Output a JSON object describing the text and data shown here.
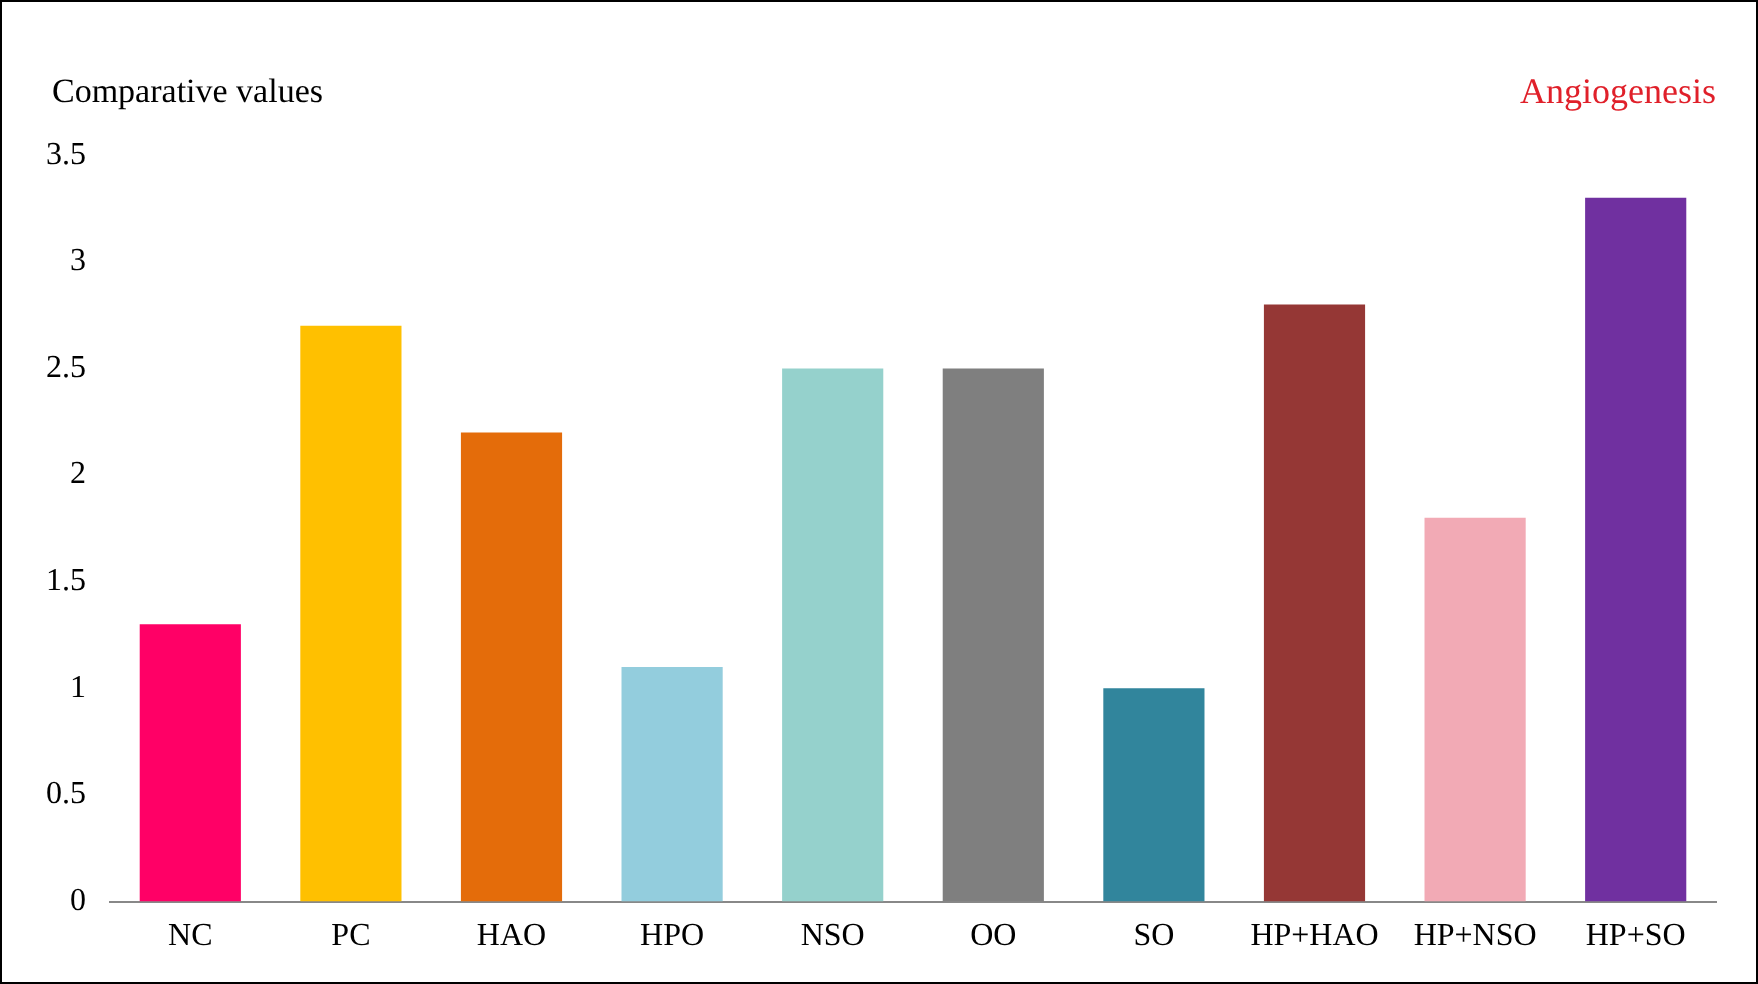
{
  "chart_data": {
    "type": "bar",
    "title": "Angiogenesis",
    "ylabel": "Comparative values",
    "categories": [
      "NC",
      "PC",
      "HAO",
      "HPO",
      "NSO",
      "OO",
      "SO",
      "HP+HAO",
      "HP+NSO",
      "HP+SO"
    ],
    "values": [
      1.3,
      2.7,
      2.2,
      1.1,
      2.5,
      2.5,
      1.0,
      2.8,
      1.8,
      3.3
    ],
    "colors": [
      "#ff0066",
      "#ffc000",
      "#e46c0a",
      "#93cddd",
      "#95d1cc",
      "#7f7f7f",
      "#31859c",
      "#953735",
      "#f2aab5",
      "#7030a0"
    ],
    "ylim": [
      0,
      3.5
    ],
    "yticks": [
      0,
      0.5,
      1,
      1.5,
      2,
      2.5,
      3,
      3.5
    ],
    "grid": false,
    "legend": false
  }
}
